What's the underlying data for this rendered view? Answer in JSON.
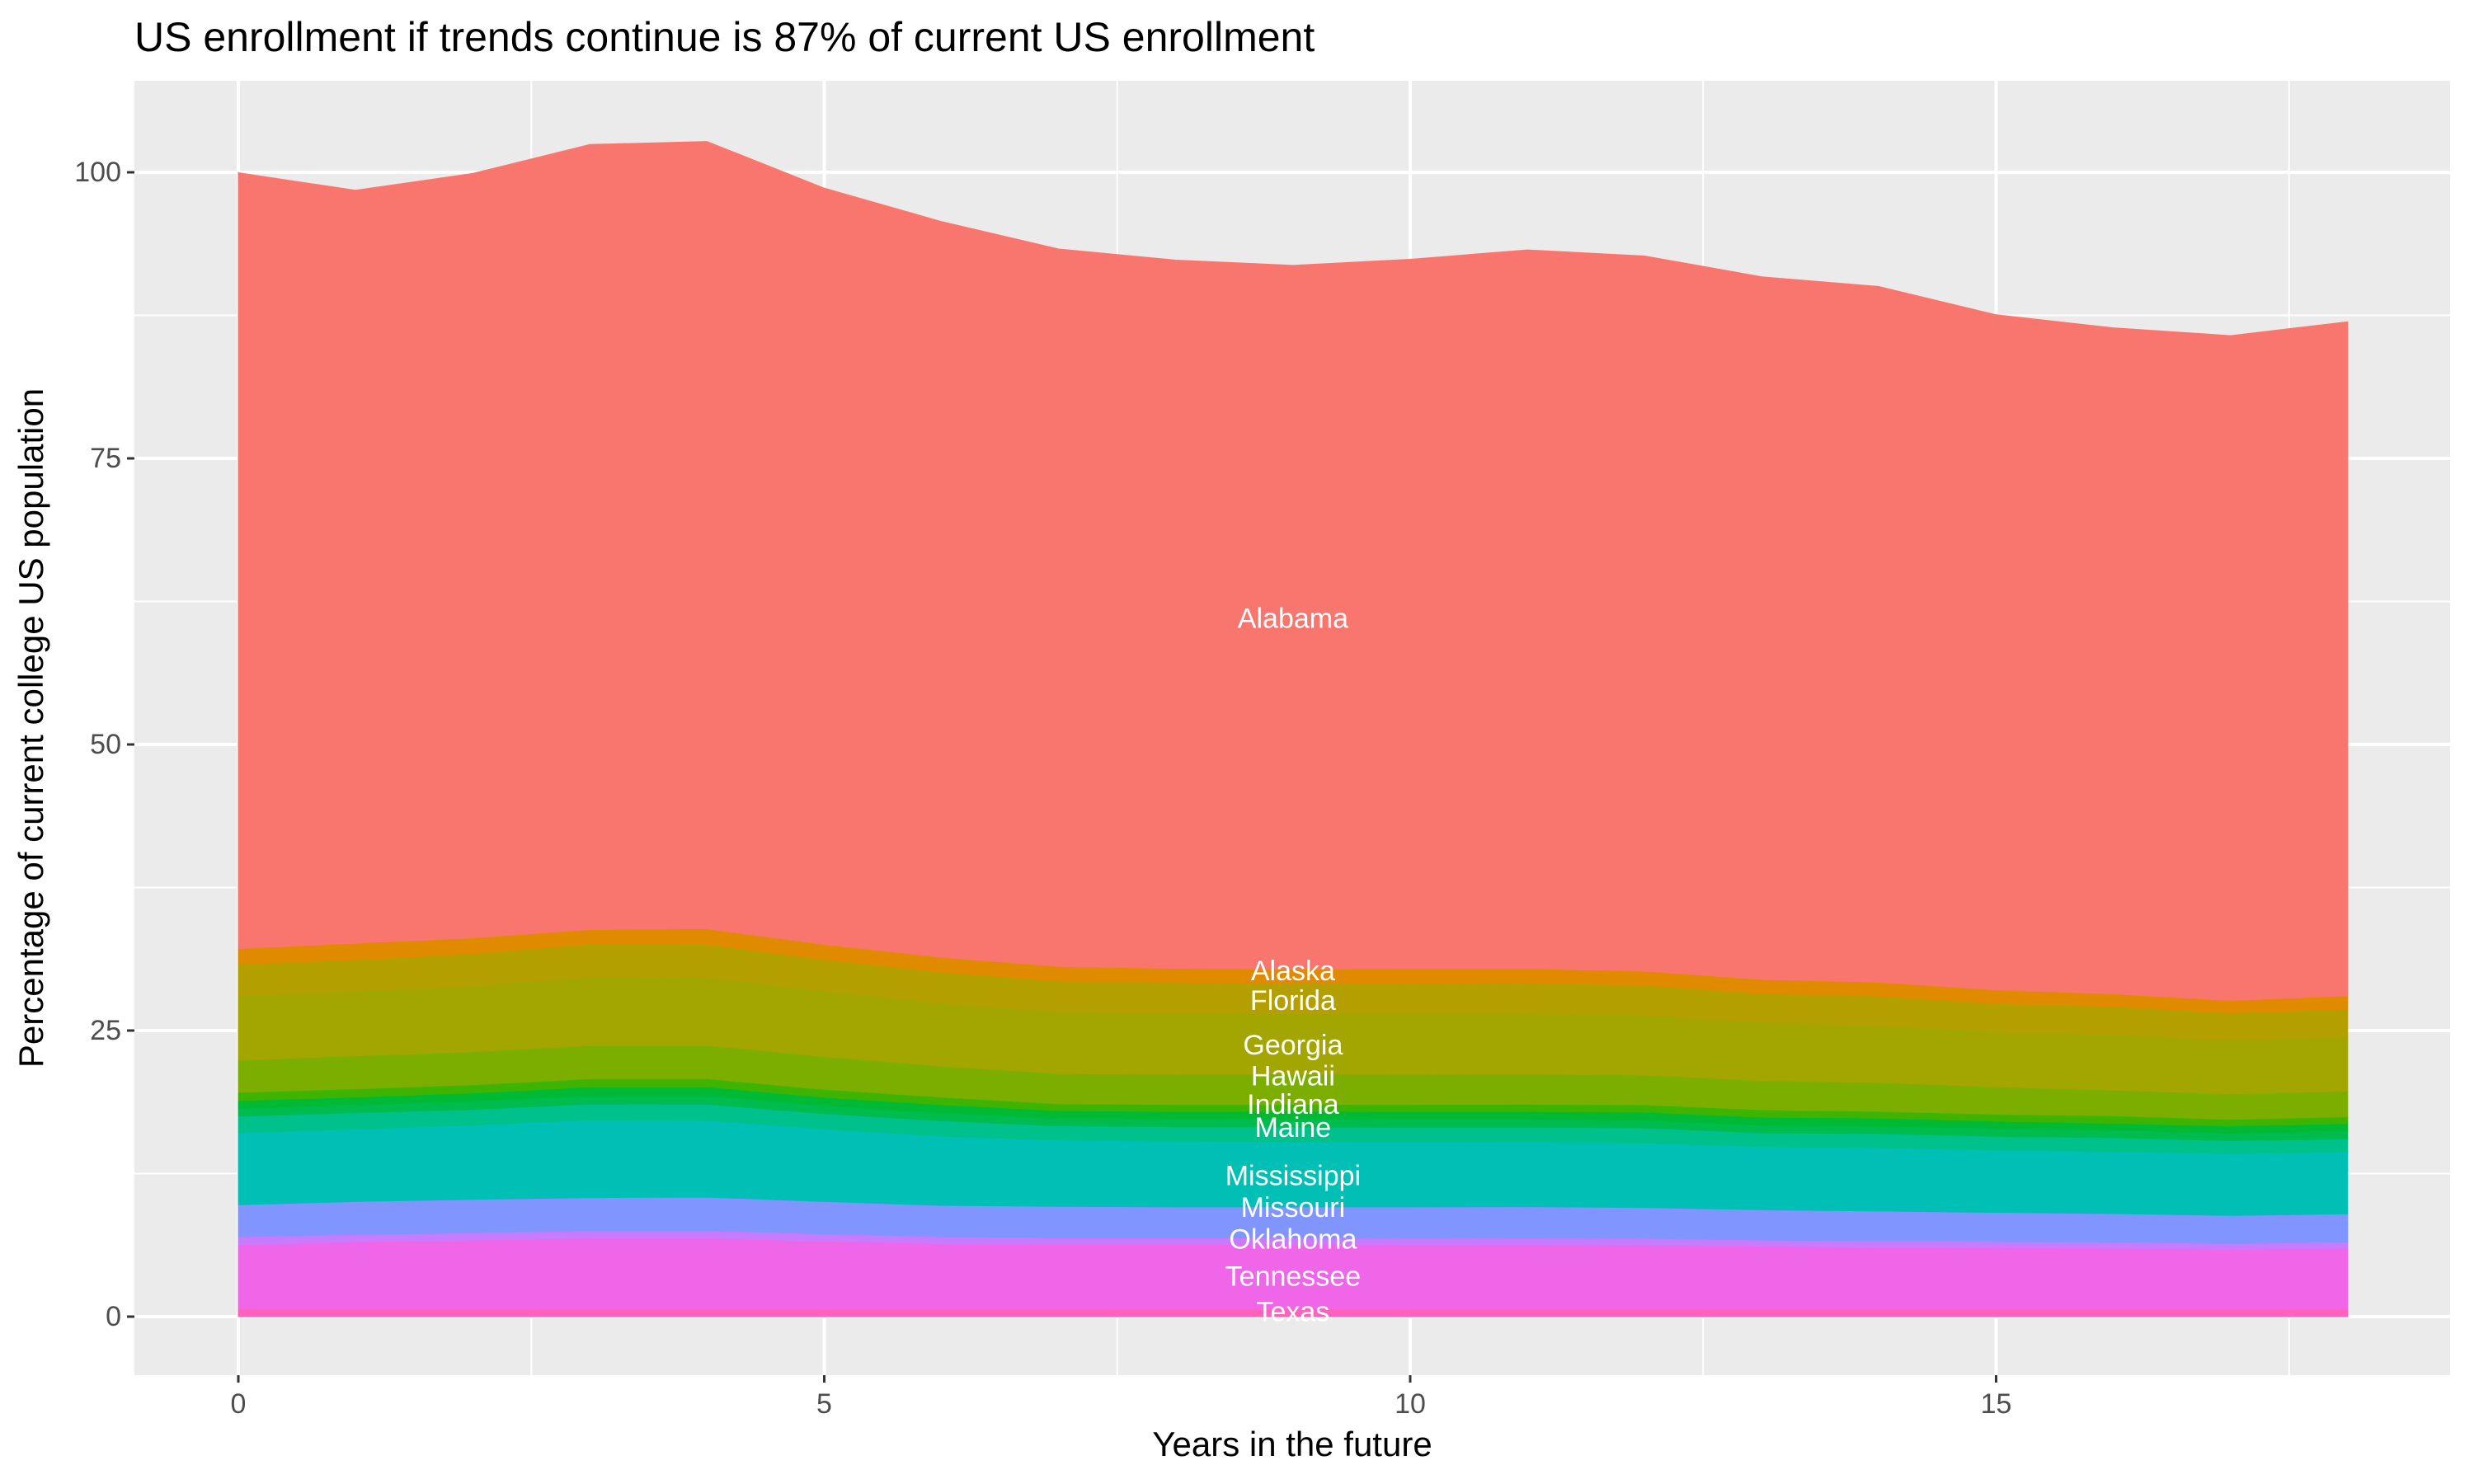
{
  "chart_data": {
    "type": "area",
    "stacked": true,
    "title": "US enrollment if trends continue is 87% of current US enrollment",
    "xlabel": "Years in the future",
    "ylabel": "Percentage of current college US population",
    "x": [
      0,
      1,
      2,
      3,
      4,
      5,
      6,
      7,
      8,
      9,
      10,
      11,
      12,
      13,
      14,
      15,
      16,
      17,
      18
    ],
    "xlim": [
      0,
      18
    ],
    "ylim": [
      0,
      102.8
    ],
    "x_ticks": [
      0,
      5,
      10,
      15
    ],
    "x_tick_labels": [
      "0",
      "5",
      "10",
      "15"
    ],
    "y_ticks": [
      0,
      25,
      50,
      75,
      100
    ],
    "y_tick_labels": [
      "0",
      "25",
      "50",
      "75",
      "100"
    ],
    "grid": true,
    "legend": "none",
    "label_x": 9,
    "background": "#EBEBEB",
    "series": [
      {
        "name": "Texas",
        "color": "#FF62BC",
        "label_y": 0.4,
        "values": [
          0.7,
          0.7,
          0.7,
          0.7,
          0.7,
          0.7,
          0.7,
          0.7,
          0.7,
          0.7,
          0.7,
          0.7,
          0.7,
          0.7,
          0.7,
          0.7,
          0.7,
          0.7,
          0.7
        ]
      },
      {
        "name": "Tennessee",
        "color": "#F066E9",
        "label_y": 3.5,
        "values": [
          5.57,
          5.86,
          6.0,
          6.15,
          6.15,
          5.91,
          5.69,
          5.6,
          5.6,
          5.6,
          5.57,
          5.57,
          5.55,
          5.45,
          5.38,
          5.33,
          5.28,
          5.19,
          5.28
        ]
      },
      {
        "name": "Oklahoma",
        "color": "#C77CFF",
        "label_y": 6.75,
        "values": [
          0.72,
          0.62,
          0.62,
          0.67,
          0.67,
          0.62,
          0.6,
          0.6,
          0.58,
          0.58,
          0.58,
          0.6,
          0.6,
          0.55,
          0.53,
          0.53,
          0.53,
          0.5,
          0.53
        ]
      },
      {
        "name": "Missouri",
        "color": "#8095FF",
        "label_y": 9.5,
        "values": [
          2.79,
          2.88,
          2.93,
          2.88,
          2.93,
          2.83,
          2.74,
          2.74,
          2.71,
          2.71,
          2.74,
          2.74,
          2.69,
          2.64,
          2.62,
          2.55,
          2.5,
          2.45,
          2.47
        ]
      },
      {
        "name": "Mississippi",
        "color": "#00BFB4",
        "label_y": 12.3,
        "values": [
          6.29,
          6.34,
          6.48,
          6.8,
          6.7,
          6.34,
          6.05,
          5.79,
          5.74,
          5.72,
          5.69,
          5.64,
          5.64,
          5.52,
          5.55,
          5.45,
          5.43,
          5.4,
          5.4
        ]
      },
      {
        "name": "Maine",
        "color": "#00C08B",
        "label_y": 16.5,
        "values": [
          1.44,
          1.42,
          1.37,
          1.39,
          1.42,
          1.34,
          1.34,
          1.25,
          1.27,
          1.27,
          1.27,
          1.3,
          1.32,
          1.2,
          1.22,
          1.2,
          1.2,
          1.15,
          1.15
        ]
      },
      {
        "color": "#00BB4E",
        "values": [
          0.7,
          0.7,
          0.74,
          0.74,
          0.77,
          0.7,
          0.7,
          0.65,
          0.67,
          0.7,
          0.72,
          0.72,
          0.67,
          0.67,
          0.65,
          0.72,
          0.65,
          0.65,
          0.67
        ]
      },
      {
        "color": "#00B934",
        "values": [
          0.67,
          0.67,
          0.7,
          0.74,
          0.74,
          0.72,
          0.7,
          0.67,
          0.67,
          0.67,
          0.67,
          0.67,
          0.7,
          0.7,
          0.7,
          0.6,
          0.6,
          0.62,
          0.67
        ]
      },
      {
        "name": "Indiana",
        "color": "#3FB400",
        "label_y": 18.5,
        "values": [
          0.72,
          0.72,
          0.72,
          0.72,
          0.72,
          0.7,
          0.67,
          0.6,
          0.6,
          0.6,
          0.6,
          0.62,
          0.65,
          0.65,
          0.6,
          0.6,
          0.67,
          0.58,
          0.6
        ]
      },
      {
        "name": "Hawaii",
        "color": "#7CAE00",
        "label_y": 21.0,
        "values": [
          2.81,
          2.88,
          2.88,
          2.91,
          2.91,
          2.86,
          2.69,
          2.64,
          2.64,
          2.64,
          2.62,
          2.64,
          2.59,
          2.55,
          2.5,
          2.4,
          2.23,
          2.23,
          2.23
        ]
      },
      {
        "name": "Georgia",
        "color": "#A3A500",
        "label_y": 23.7,
        "values": [
          5.6,
          5.64,
          5.76,
          5.98,
          5.93,
          5.72,
          5.48,
          5.4,
          5.31,
          5.26,
          5.28,
          5.26,
          5.19,
          5.09,
          5.0,
          4.8,
          4.85,
          4.68,
          4.76
        ]
      },
      {
        "name": "Florida",
        "color": "#B39F00",
        "label_y": 27.6,
        "values": [
          2.76,
          2.76,
          2.81,
          2.88,
          2.88,
          2.76,
          2.74,
          2.69,
          2.69,
          2.67,
          2.69,
          2.69,
          2.67,
          2.5,
          2.57,
          2.47,
          2.47,
          2.4,
          2.4
        ]
      },
      {
        "name": "Alaska",
        "color": "#E08A00",
        "label_y": 30.2,
        "values": [
          1.39,
          1.44,
          1.39,
          1.27,
          1.37,
          1.32,
          1.3,
          1.27,
          1.25,
          1.25,
          1.27,
          1.27,
          1.22,
          1.25,
          1.2,
          1.2,
          1.1,
          1.08,
          1.18
        ]
      },
      {
        "name": "Alabama",
        "color": "#F8766D",
        "label_y": 61.0,
        "values": [
          67.8,
          65.8,
          66.8,
          68.6,
          68.8,
          66.1,
          64.3,
          62.7,
          61.9,
          61.5,
          62.0,
          62.8,
          62.5,
          61.4,
          60.8,
          59.0,
          58.2,
          58.1,
          58.9
        ]
      }
    ]
  }
}
